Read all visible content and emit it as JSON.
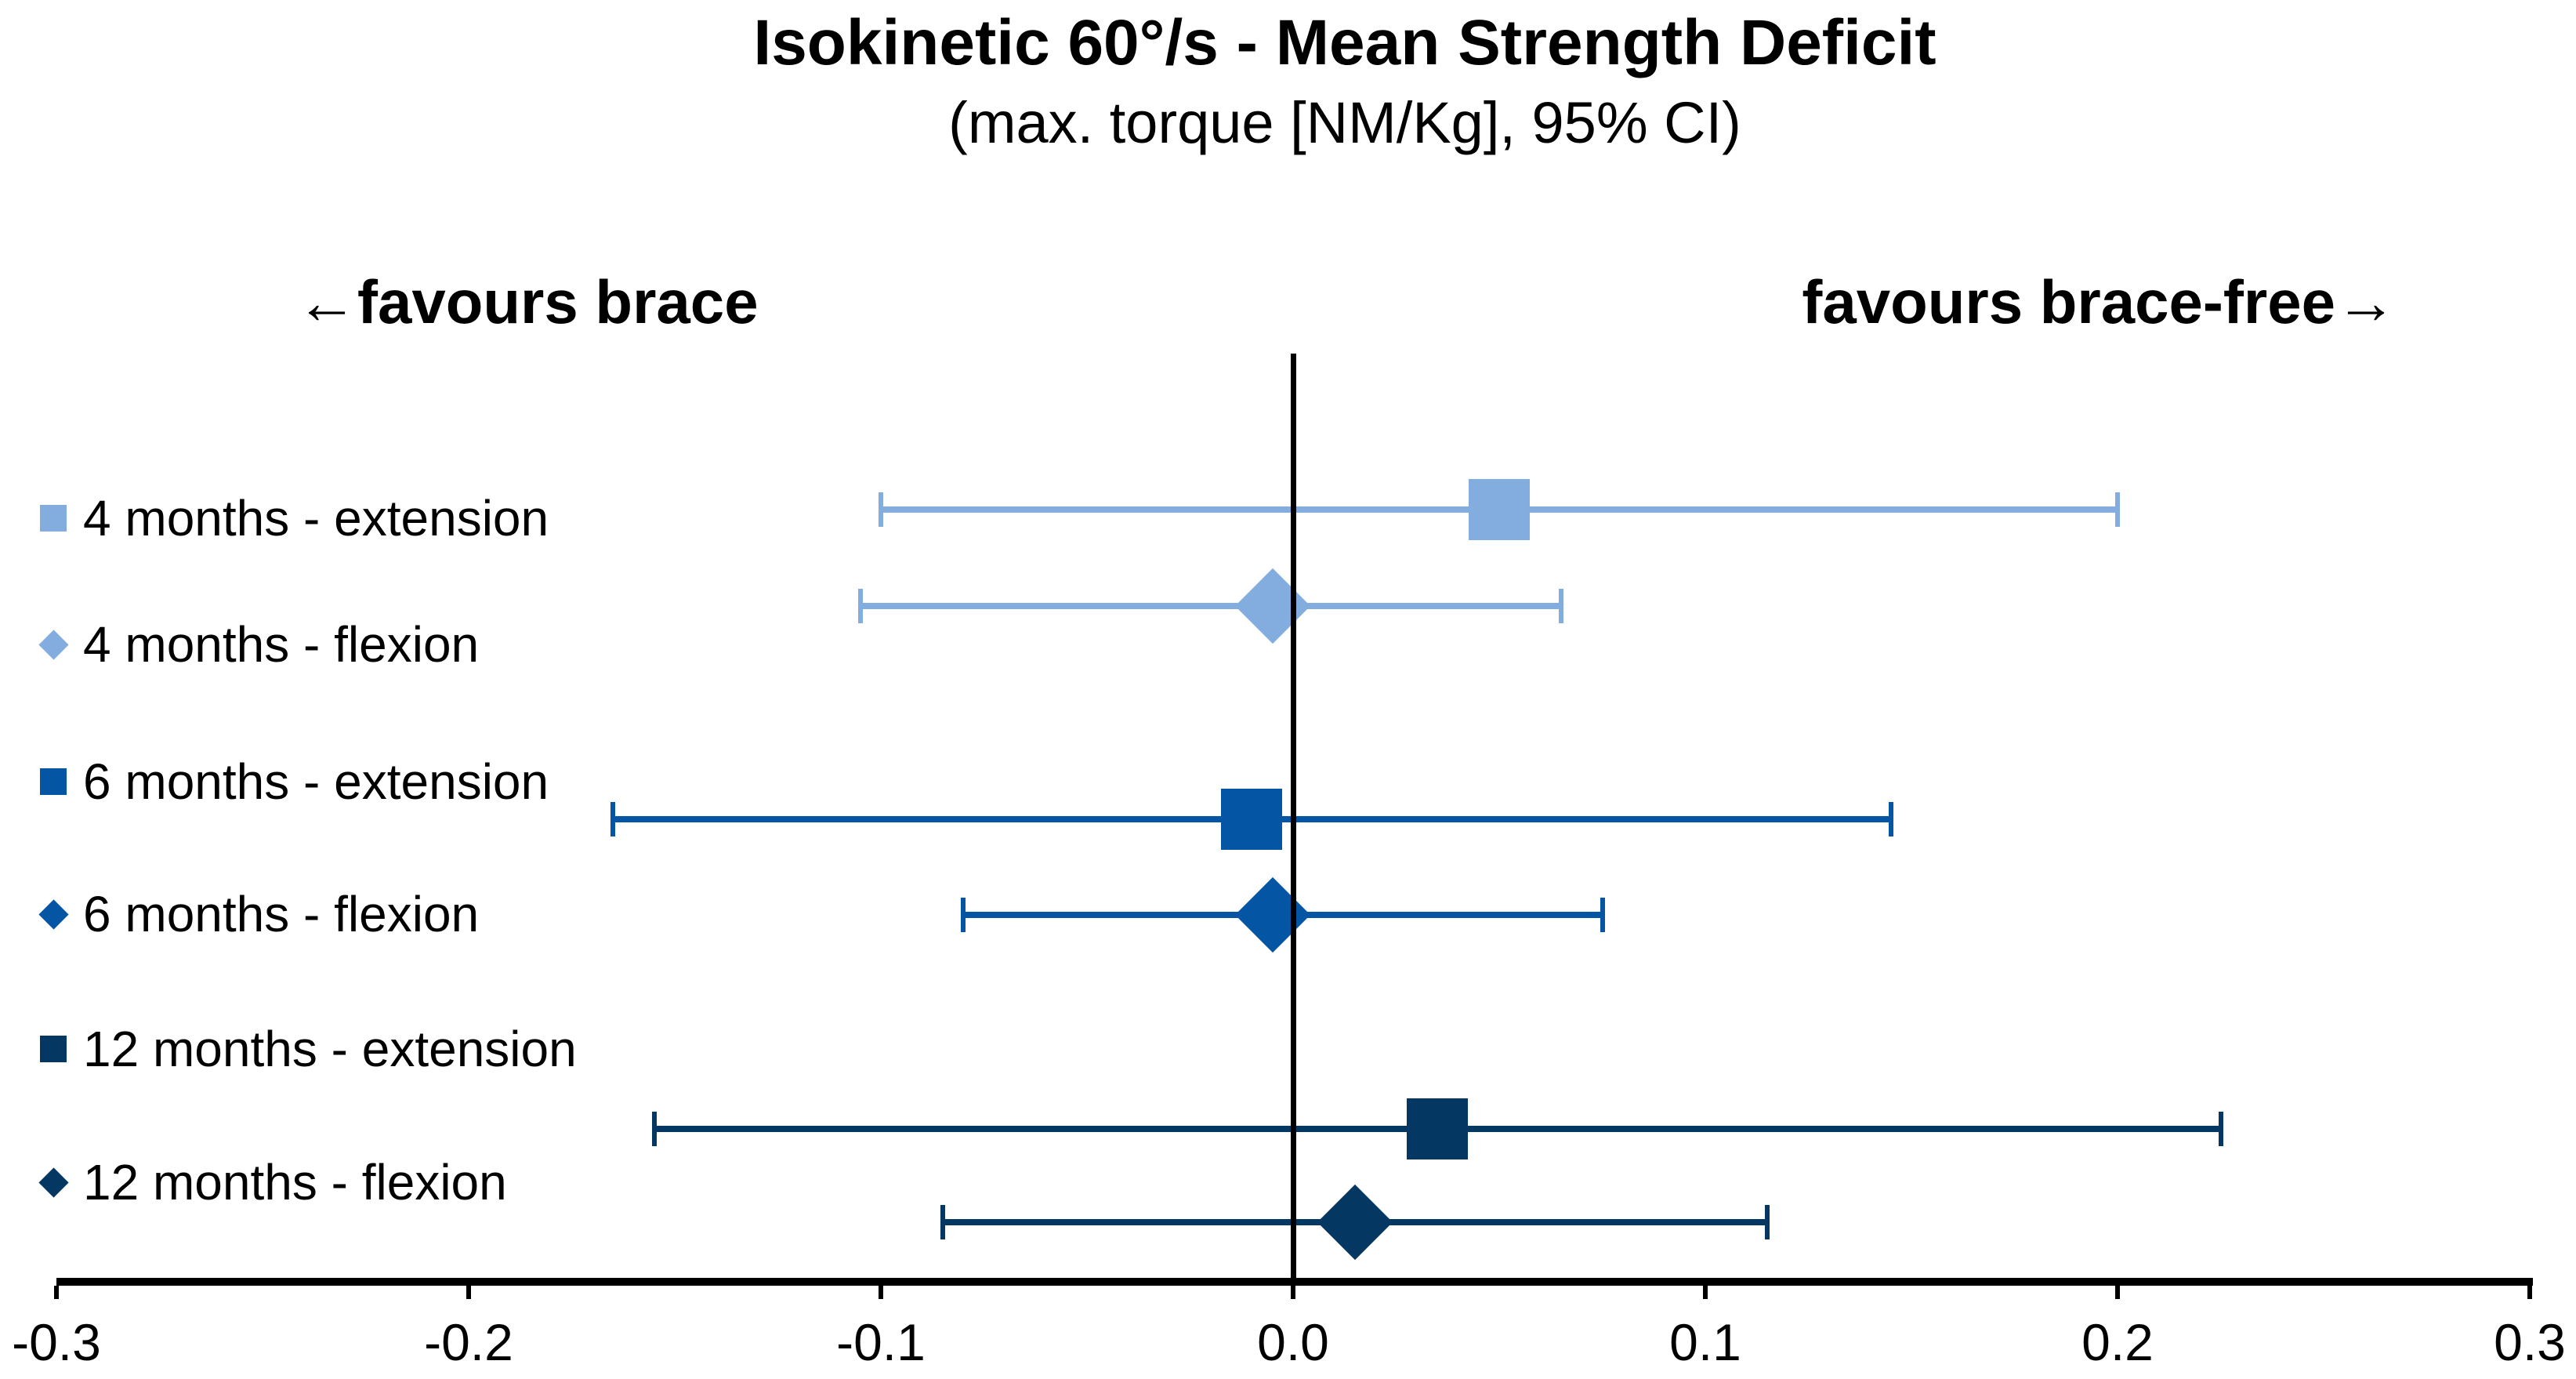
{
  "title": "Isokinetic 60°/s - Mean Strength Deficit",
  "subtitle": "(max. torque [NM/Kg], 95% CI)",
  "direction_labels": {
    "left": "←favours brace",
    "right": "favours brace-free→"
  },
  "colors": {
    "series_4_months": "#83ACDF",
    "series_6_months": "#0455A3",
    "series_12_months": "#053763",
    "axis": "#000000",
    "background": "#FFFFFF"
  },
  "chart_data": {
    "type": "scatter",
    "subtype": "forest-plot",
    "title": "Isokinetic 60°/s - Mean Strength Deficit",
    "subtitle": "(max. torque [NM/Kg], 95% CI)",
    "xlabel": "max. torque [NM/Kg]",
    "ylabel": "",
    "xlim": [
      -0.3,
      0.3
    ],
    "grid": false,
    "legend_position": "left",
    "reference_line_x": 0.0,
    "x_ticks": [
      -0.3,
      -0.2,
      -0.1,
      0.0,
      0.1,
      0.2,
      0.3
    ],
    "x_tick_labels": [
      "-0.3",
      "-0.2",
      "-0.1",
      "0.0",
      "0.1",
      "0.2",
      "0.3"
    ],
    "series": [
      {
        "name": "4 months - extension",
        "marker": "square",
        "color": "#83ACDF",
        "mean": 0.05,
        "ci_low": -0.1,
        "ci_high": 0.2
      },
      {
        "name": "4 months - flexion",
        "marker": "diamond",
        "color": "#83ACDF",
        "mean": -0.005,
        "ci_low": -0.105,
        "ci_high": 0.065
      },
      {
        "name": "6 months - extension",
        "marker": "square",
        "color": "#0455A3",
        "mean": -0.01,
        "ci_low": -0.165,
        "ci_high": 0.145
      },
      {
        "name": "6 months - flexion",
        "marker": "diamond",
        "color": "#0455A3",
        "mean": -0.005,
        "ci_low": -0.08,
        "ci_high": 0.075
      },
      {
        "name": "12 months - extension",
        "marker": "square",
        "color": "#053763",
        "mean": 0.035,
        "ci_low": -0.155,
        "ci_high": 0.225
      },
      {
        "name": "12 months - flexion",
        "marker": "diamond",
        "color": "#053763",
        "mean": 0.015,
        "ci_low": -0.085,
        "ci_high": 0.115
      }
    ]
  }
}
